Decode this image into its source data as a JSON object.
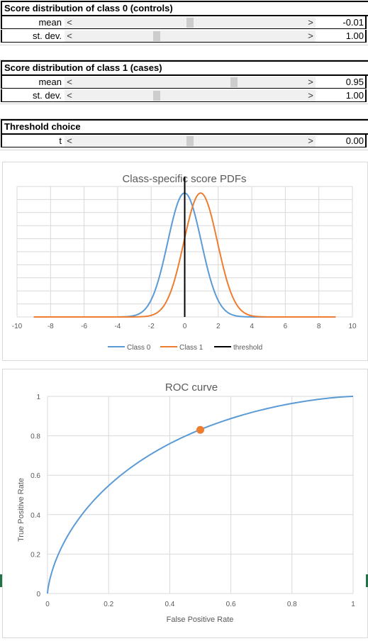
{
  "controls": {
    "class0": {
      "title": "Score distribution of class 0 (controls)",
      "mean_label": "mean",
      "mean_value": "-0.01",
      "mean_position": 0.5,
      "sd_label": "st. dev.",
      "sd_value": "1.00",
      "sd_position": 0.35
    },
    "class1": {
      "title": "Score distribution of class 1 (cases)",
      "mean_label": "mean",
      "mean_value": "0.95",
      "mean_position": 0.695,
      "sd_label": "st. dev.",
      "sd_value": "1.00",
      "sd_position": 0.35
    },
    "threshold": {
      "title": "Threshold choice",
      "t_label": "t",
      "t_value": "0.00",
      "t_position": 0.5
    },
    "left_arrow": "<",
    "right_arrow": ">"
  },
  "colors": {
    "class0": "#5B9BD5",
    "class1": "#ED7D31",
    "threshold": "#000000",
    "grid": "#d9d9d9"
  },
  "chart_data": [
    {
      "type": "line",
      "title": "Class-specific score PDFs",
      "xlabel": "",
      "ylabel": "",
      "xlim": [
        -10,
        10
      ],
      "x_ticks": [
        "-10",
        "-8",
        "-6",
        "-4",
        "-2",
        "0",
        "2",
        "4",
        "6",
        "8",
        "10"
      ],
      "grid": true,
      "legend_position": "bottom",
      "series": [
        {
          "name": "Class 0",
          "mean": -0.01,
          "sd": 1.0,
          "x_range": [
            -9,
            9
          ]
        },
        {
          "name": "Class 1",
          "mean": 0.95,
          "sd": 1.0,
          "x_range": [
            -9,
            9
          ]
        },
        {
          "name": "threshold",
          "x": [
            0,
            0
          ]
        }
      ]
    },
    {
      "type": "line",
      "title": "ROC curve",
      "xlabel": "False Positive Rate",
      "ylabel": "True Positive Rate",
      "xlim": [
        0,
        1
      ],
      "ylim": [
        0,
        1
      ],
      "x_ticks": [
        "0",
        "0.2",
        "0.4",
        "0.6",
        "0.8",
        "1"
      ],
      "y_ticks": [
        "0",
        "0.2",
        "0.4",
        "0.6",
        "0.8",
        "1"
      ],
      "grid": true,
      "series": [
        {
          "name": "ROC",
          "binormal_d": 0.96
        }
      ],
      "marker": {
        "x": 0.5,
        "y": 0.83
      }
    }
  ]
}
